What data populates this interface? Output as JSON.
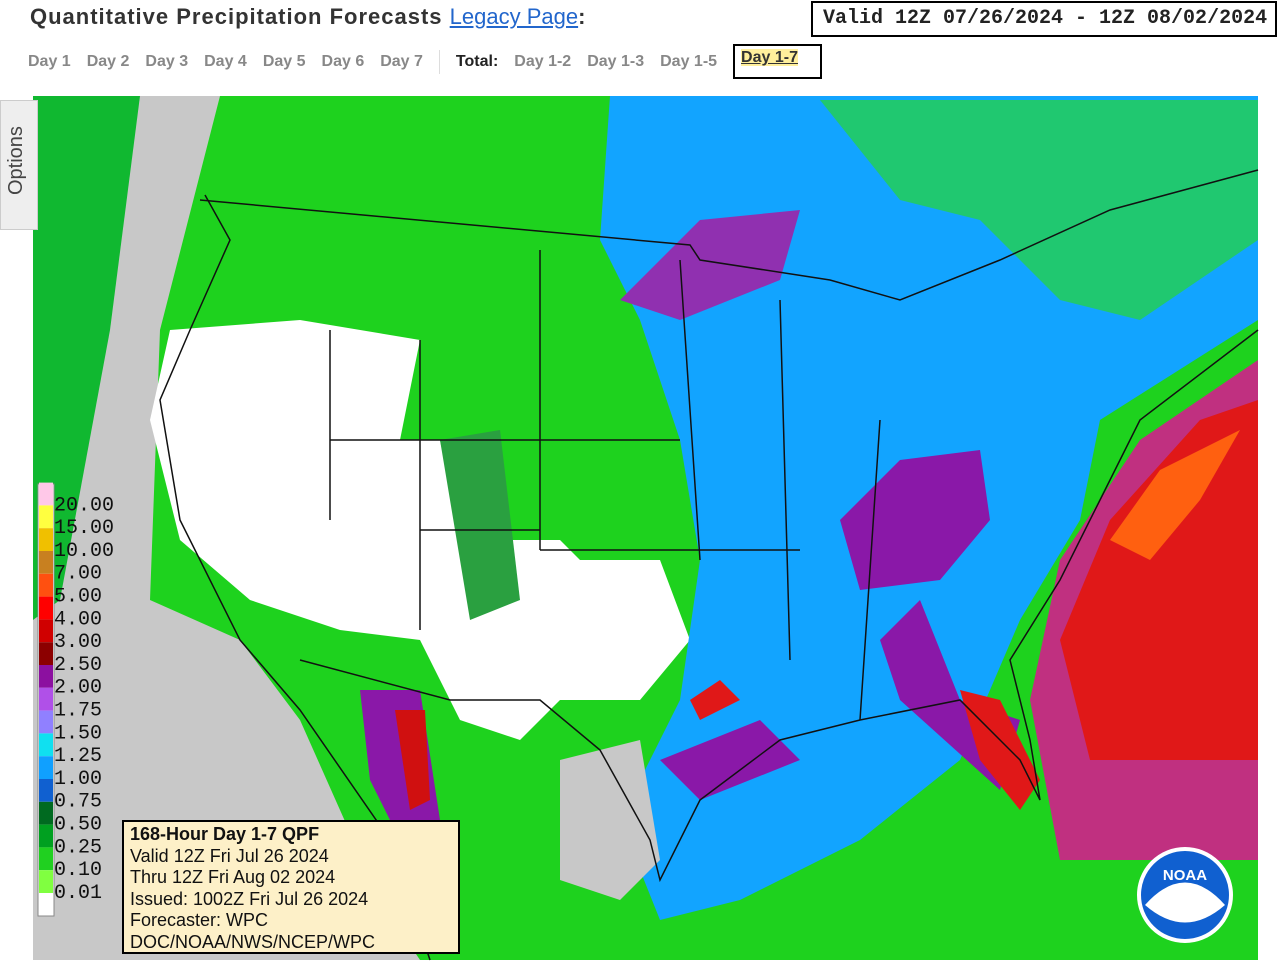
{
  "header": {
    "title": "Quantitative Precipitation Forecasts",
    "legacy_link": "Legacy Page",
    "title_colon": ":",
    "valid": "Valid 12Z 07/26/2024 - 12Z 08/02/2024"
  },
  "tabs": {
    "days": [
      "Day 1",
      "Day 2",
      "Day 3",
      "Day 4",
      "Day 5",
      "Day 6",
      "Day 7"
    ],
    "total_label": "Total:",
    "totals": [
      "Day 1-2",
      "Day 1-3",
      "Day 1-5",
      "Day 1-7"
    ]
  },
  "options": "Options",
  "legend": [
    {
      "label": "20.00",
      "color": "#ffc8e8"
    },
    {
      "label": "15.00",
      "color": "#ffff40"
    },
    {
      "label": "10.00",
      "color": "#f0c000"
    },
    {
      "label": "7.00",
      "color": "#c88020"
    },
    {
      "label": "5.00",
      "color": "#ff5010"
    },
    {
      "label": "4.00",
      "color": "#ff0000"
    },
    {
      "label": "3.00",
      "color": "#d00000"
    },
    {
      "label": "2.50",
      "color": "#8c0000"
    },
    {
      "label": "2.00",
      "color": "#8c10a0"
    },
    {
      "label": "1.75",
      "color": "#b050e8"
    },
    {
      "label": "1.50",
      "color": "#9080ff"
    },
    {
      "label": "1.25",
      "color": "#10e0f0"
    },
    {
      "label": "1.00",
      "color": "#10a0ff"
    },
    {
      "label": "0.75",
      "color": "#1060d0"
    },
    {
      "label": "0.50",
      "color": "#006a20"
    },
    {
      "label": "0.25",
      "color": "#00a020"
    },
    {
      "label": "0.10",
      "color": "#20d020"
    },
    {
      "label": "0.01",
      "color": "#80ff40"
    }
  ],
  "info_box": [
    "168-Hour Day 1-7 QPF",
    "Valid 12Z Fri Jul 26 2024",
    "Thru 12Z Fri Aug 02 2024",
    "Issued: 1002Z Fri Jul 26 2024",
    "Forecaster: WPC",
    "DOC/NOAA/NWS/NCEP/WPC"
  ],
  "logo": "NOAA"
}
